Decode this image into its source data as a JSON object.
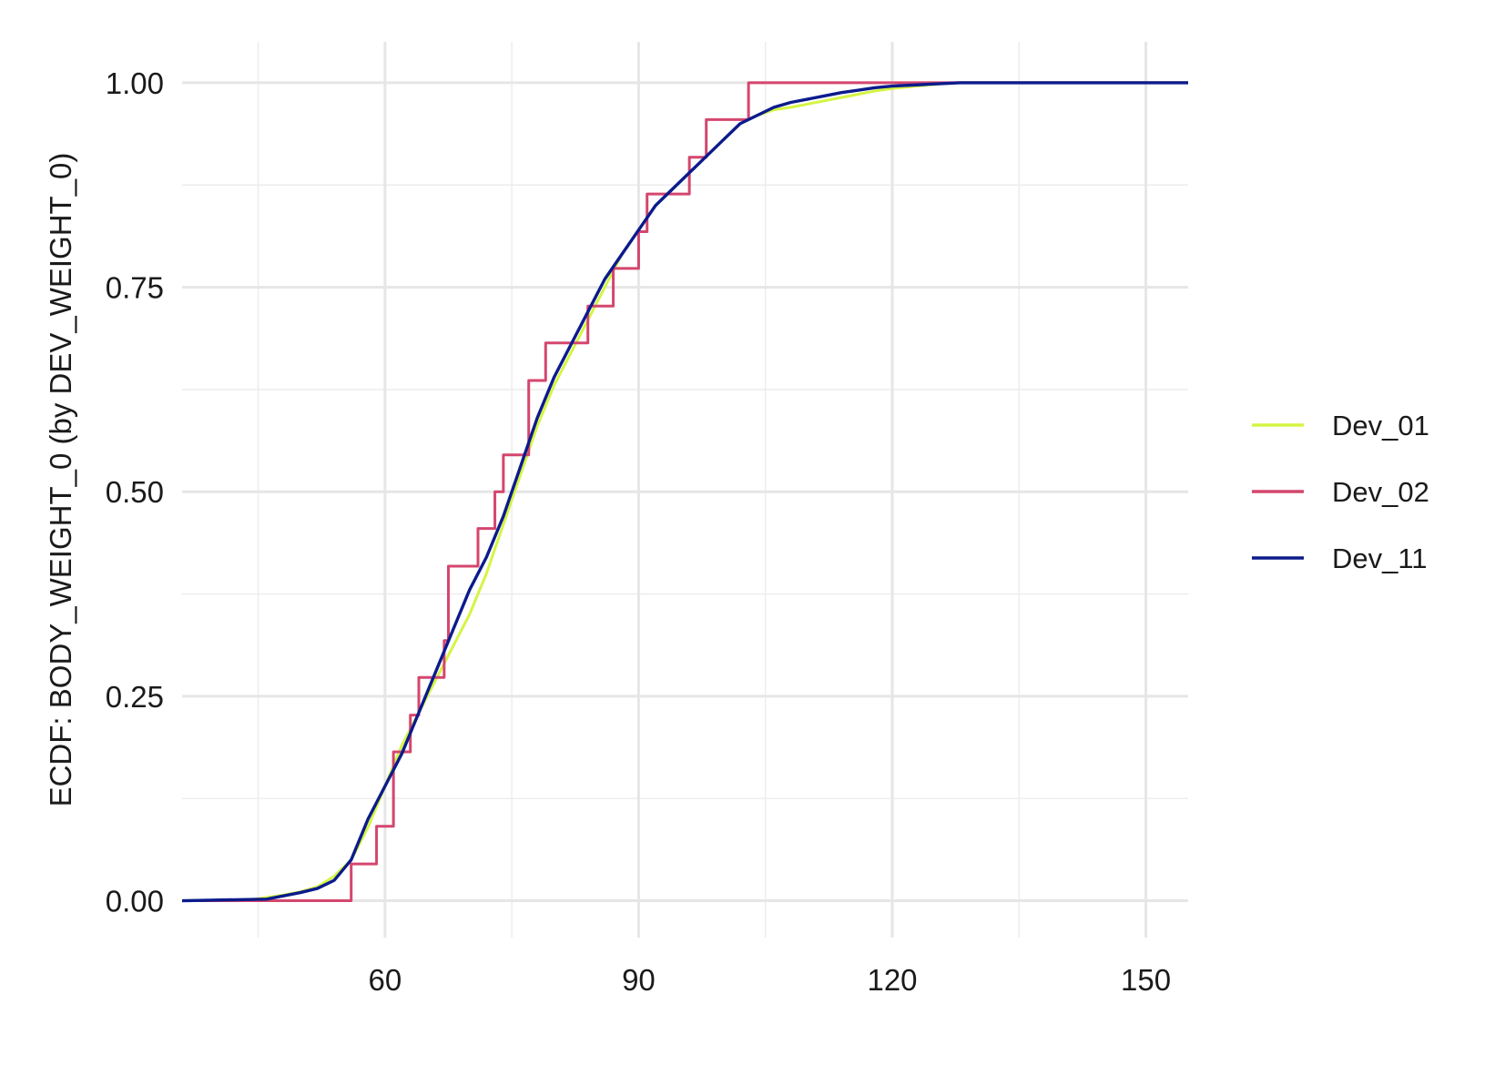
{
  "chart_data": {
    "type": "line",
    "step": true,
    "title": "",
    "xlabel": "",
    "ylabel": "ECDF: BODY_WEIGHT_0 (by DEV_WEIGHT_0)",
    "xlim": [
      36,
      155
    ],
    "ylim": [
      -0.045,
      1.05
    ],
    "x_ticks": [
      60,
      90,
      120,
      150
    ],
    "x_tick_labels": [
      "60",
      "90",
      "120",
      "150"
    ],
    "x_minor_ticks": [
      45,
      75,
      105,
      135
    ],
    "y_ticks": [
      0,
      0.25,
      0.5,
      0.75,
      1
    ],
    "y_tick_labels": [
      "0.00",
      "0.25",
      "0.50",
      "0.75",
      "1.00"
    ],
    "y_minor_ticks": [
      0.125,
      0.375,
      0.625,
      0.875
    ],
    "grid": true,
    "legend_position": "right",
    "series": [
      {
        "name": "Dev_01",
        "color": "#d4f543",
        "x": [
          36,
          44,
          46,
          48,
          50,
          52,
          54,
          56,
          58,
          60,
          62,
          64,
          66,
          68,
          70,
          72,
          74,
          76,
          78,
          80,
          82,
          84,
          86,
          88,
          90,
          92,
          94,
          96,
          98,
          100,
          102,
          104,
          106,
          108,
          110,
          112,
          114,
          116,
          118,
          120,
          122,
          124,
          126,
          128,
          155
        ],
        "y": [
          0,
          0.001,
          0.004,
          0.007,
          0.011,
          0.017,
          0.03,
          0.05,
          0.09,
          0.14,
          0.19,
          0.23,
          0.27,
          0.31,
          0.35,
          0.4,
          0.46,
          0.52,
          0.58,
          0.63,
          0.67,
          0.71,
          0.75,
          0.79,
          0.82,
          0.85,
          0.87,
          0.89,
          0.91,
          0.93,
          0.95,
          0.96,
          0.967,
          0.97,
          0.974,
          0.978,
          0.982,
          0.986,
          0.99,
          0.993,
          0.995,
          0.997,
          0.999,
          1,
          1
        ]
      },
      {
        "name": "Dev_02",
        "color": "#d4466e",
        "x": [
          36,
          56,
          59,
          61,
          63,
          63.5,
          64,
          67,
          67.5,
          71,
          73,
          74,
          77,
          79,
          84,
          87,
          90,
          91,
          93,
          96,
          98,
          103,
          155
        ],
        "y": [
          0,
          0.045,
          0.091,
          0.182,
          0.227,
          0.227,
          0.273,
          0.318,
          0.409,
          0.455,
          0.5,
          0.545,
          0.636,
          0.682,
          0.727,
          0.773,
          0.818,
          0.864,
          0.864,
          0.909,
          0.955,
          1,
          1
        ]
      },
      {
        "name": "Dev_11",
        "color": "#0b1b8c",
        "x": [
          36,
          46,
          48,
          50,
          52,
          54,
          56,
          58,
          60,
          62,
          64,
          66,
          68,
          70,
          72,
          74,
          76,
          78,
          80,
          82,
          84,
          86,
          88,
          90,
          92,
          94,
          96,
          98,
          100,
          102,
          104,
          106,
          108,
          110,
          112,
          114,
          116,
          118,
          120,
          122,
          124,
          126,
          128,
          155
        ],
        "y": [
          0,
          0.002,
          0.006,
          0.01,
          0.015,
          0.025,
          0.05,
          0.1,
          0.14,
          0.18,
          0.23,
          0.28,
          0.33,
          0.38,
          0.42,
          0.47,
          0.53,
          0.59,
          0.64,
          0.68,
          0.72,
          0.76,
          0.79,
          0.82,
          0.85,
          0.87,
          0.89,
          0.91,
          0.93,
          0.95,
          0.96,
          0.97,
          0.976,
          0.98,
          0.984,
          0.988,
          0.991,
          0.994,
          0.996,
          0.997,
          0.998,
          0.999,
          1,
          1
        ]
      }
    ]
  }
}
